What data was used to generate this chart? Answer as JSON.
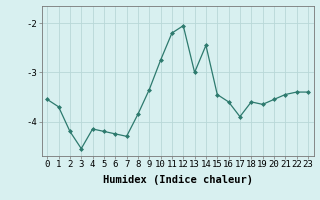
{
  "x": [
    0,
    1,
    2,
    3,
    4,
    5,
    6,
    7,
    8,
    9,
    10,
    11,
    12,
    13,
    14,
    15,
    16,
    17,
    18,
    19,
    20,
    21,
    22,
    23
  ],
  "y": [
    -3.55,
    -3.7,
    -4.2,
    -4.55,
    -4.15,
    -4.2,
    -4.25,
    -4.3,
    -3.85,
    -3.35,
    -2.75,
    -2.2,
    -2.05,
    -3.0,
    -2.45,
    -3.45,
    -3.6,
    -3.9,
    -3.6,
    -3.65,
    -3.55,
    -3.45,
    -3.4,
    -3.4
  ],
  "line_color": "#2d7a6e",
  "marker": "D",
  "markersize": 2.0,
  "linewidth": 0.9,
  "bg_color": "#d8f0f0",
  "grid_color": "#b8d8d8",
  "xlabel": "Humidex (Indice chaleur)",
  "ylim": [
    -4.7,
    -1.65
  ],
  "xlim": [
    -0.5,
    23.5
  ],
  "yticks": [
    -4,
    -3,
    -2
  ],
  "xticks": [
    0,
    1,
    2,
    3,
    4,
    5,
    6,
    7,
    8,
    9,
    10,
    11,
    12,
    13,
    14,
    15,
    16,
    17,
    18,
    19,
    20,
    21,
    22,
    23
  ],
  "tick_fontsize": 6.5,
  "label_fontsize": 7.5
}
